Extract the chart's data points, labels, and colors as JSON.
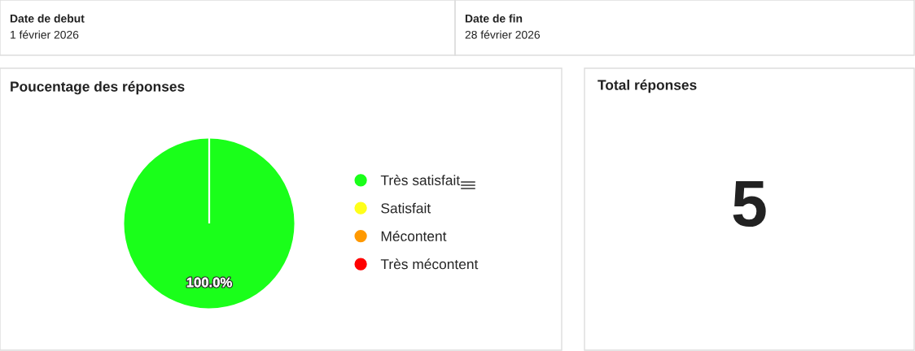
{
  "chart_data": [
    {
      "type": "other",
      "title": "Date de debut",
      "annotations": [
        "1 février 2026"
      ]
    },
    {
      "type": "other",
      "title": "Date de fin",
      "annotations": [
        "28 février 2026"
      ]
    },
    {
      "type": "pie",
      "title": "Poucentage des réponses",
      "categories": [
        "Très satisfait",
        "Satisfait",
        "Mécontent",
        "Très mécontent"
      ],
      "values": [
        100,
        0,
        0,
        0
      ],
      "colors": [
        "#1aff1a",
        "#ffff1a",
        "#ff9900",
        "#ff0000"
      ],
      "value_labels": [
        "100.0%",
        null,
        null,
        null
      ],
      "legend": "right"
    },
    {
      "type": "other",
      "title": "Total réponses",
      "annotations": [
        "5"
      ]
    }
  ]
}
